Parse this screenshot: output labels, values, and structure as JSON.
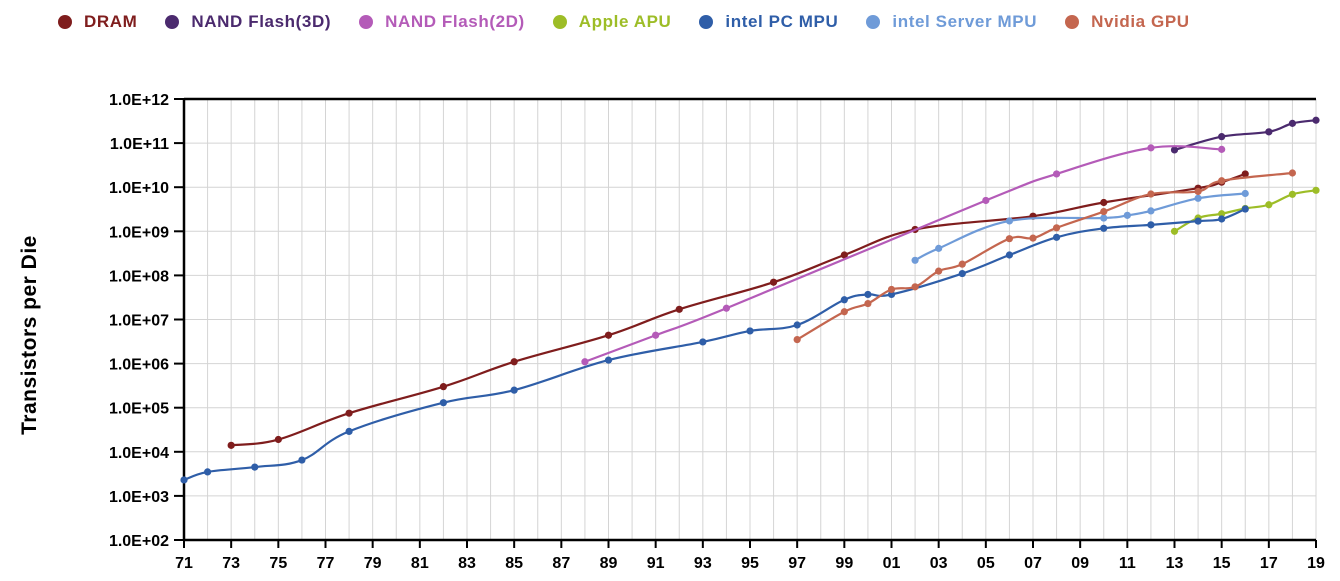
{
  "chart_data": {
    "type": "line",
    "title": "",
    "xlabel": "",
    "ylabel": "Transistors per Die",
    "y_scale": "log",
    "ylim": [
      100,
      1000000000000
    ],
    "xlim": [
      1971,
      2019
    ],
    "grid": true,
    "legend_position": "top",
    "x_tick_labels": [
      "71",
      "73",
      "75",
      "77",
      "79",
      "81",
      "83",
      "85",
      "87",
      "89",
      "91",
      "93",
      "95",
      "97",
      "99",
      "01",
      "03",
      "05",
      "07",
      "09",
      "11",
      "13",
      "15",
      "17",
      "19"
    ],
    "y_tick_labels": [
      "1.0E+02",
      "1.0E+03",
      "1.0E+04",
      "1.0E+05",
      "1.0E+06",
      "1.0E+07",
      "1.0E+08",
      "1.0E+09",
      "1.0E+10",
      "1.0E+11",
      "1.0E+12"
    ],
    "series": [
      {
        "name": "DRAM",
        "color": "#7f1d1d",
        "points": [
          [
            1973,
            14000
          ],
          [
            1975,
            19000
          ],
          [
            1978,
            75000
          ],
          [
            1982,
            300000
          ],
          [
            1985,
            1100000
          ],
          [
            1989,
            4400000
          ],
          [
            1992,
            17000000
          ],
          [
            1996,
            70000000
          ],
          [
            1999,
            290000000
          ],
          [
            2002,
            1100000000
          ],
          [
            2007,
            2200000000
          ],
          [
            2010,
            4500000000
          ],
          [
            2014,
            9500000000
          ],
          [
            2015,
            13000000000
          ],
          [
            2016,
            20000000000
          ]
        ]
      },
      {
        "name": "NAND Flash(3D)",
        "color": "#4b2a6e",
        "points": [
          [
            2013,
            70000000000
          ],
          [
            2015,
            140000000000
          ],
          [
            2017,
            180000000000
          ],
          [
            2018,
            280000000000
          ],
          [
            2019,
            330000000000
          ]
        ]
      },
      {
        "name": "NAND Flash(2D)",
        "color": "#b45bb8",
        "points": [
          [
            1988,
            1100000
          ],
          [
            1991,
            4400000
          ],
          [
            1994,
            18000000
          ],
          [
            2005,
            5000000000
          ],
          [
            2008,
            20000000000
          ],
          [
            2012,
            78000000000
          ],
          [
            2015,
            72000000000
          ]
        ]
      },
      {
        "name": "Apple APU",
        "color": "#9dbd27",
        "points": [
          [
            2013,
            1000000000
          ],
          [
            2014,
            2000000000
          ],
          [
            2015,
            2500000000
          ],
          [
            2016,
            3300000000
          ],
          [
            2017,
            4000000000
          ],
          [
            2018,
            6900000000
          ],
          [
            2019,
            8500000000
          ]
        ]
      },
      {
        "name": "intel PC MPU",
        "color": "#2f5ea8",
        "points": [
          [
            1971,
            2300
          ],
          [
            1972,
            3500
          ],
          [
            1974,
            4500
          ],
          [
            1976,
            6500
          ],
          [
            1978,
            29000
          ],
          [
            1982,
            130000
          ],
          [
            1985,
            250000
          ],
          [
            1989,
            1200000
          ],
          [
            1993,
            3100000
          ],
          [
            1995,
            5500000
          ],
          [
            1997,
            7500000
          ],
          [
            1999,
            28000000
          ],
          [
            2000,
            37000000
          ],
          [
            2001,
            37000000
          ],
          [
            2004,
            110000000
          ],
          [
            2006,
            290000000
          ],
          [
            2008,
            730000000
          ],
          [
            2010,
            1170000000
          ],
          [
            2012,
            1400000000
          ],
          [
            2014,
            1700000000
          ],
          [
            2015,
            1900000000
          ],
          [
            2016,
            3200000000
          ]
        ]
      },
      {
        "name": "intel Server MPU",
        "color": "#6f9bd8",
        "points": [
          [
            2002,
            220000000
          ],
          [
            2003,
            410000000
          ],
          [
            2006,
            1720000000
          ],
          [
            2010,
            2000000000
          ],
          [
            2011,
            2300000000
          ],
          [
            2012,
            2900000000
          ],
          [
            2014,
            5600000000
          ],
          [
            2016,
            7200000000
          ]
        ]
      },
      {
        "name": "Nvidia GPU",
        "color": "#c4664f",
        "points": [
          [
            1997,
            3500000
          ],
          [
            1999,
            15000000
          ],
          [
            2000,
            23000000
          ],
          [
            2001,
            48000000
          ],
          [
            2002,
            55000000
          ],
          [
            2003,
            125000000
          ],
          [
            2004,
            180000000
          ],
          [
            2006,
            680000000
          ],
          [
            2007,
            700000000
          ],
          [
            2008,
            1200000000
          ],
          [
            2010,
            2800000000
          ],
          [
            2012,
            7000000000
          ],
          [
            2014,
            8000000000
          ],
          [
            2015,
            14000000000
          ],
          [
            2018,
            21000000000
          ]
        ]
      }
    ]
  }
}
